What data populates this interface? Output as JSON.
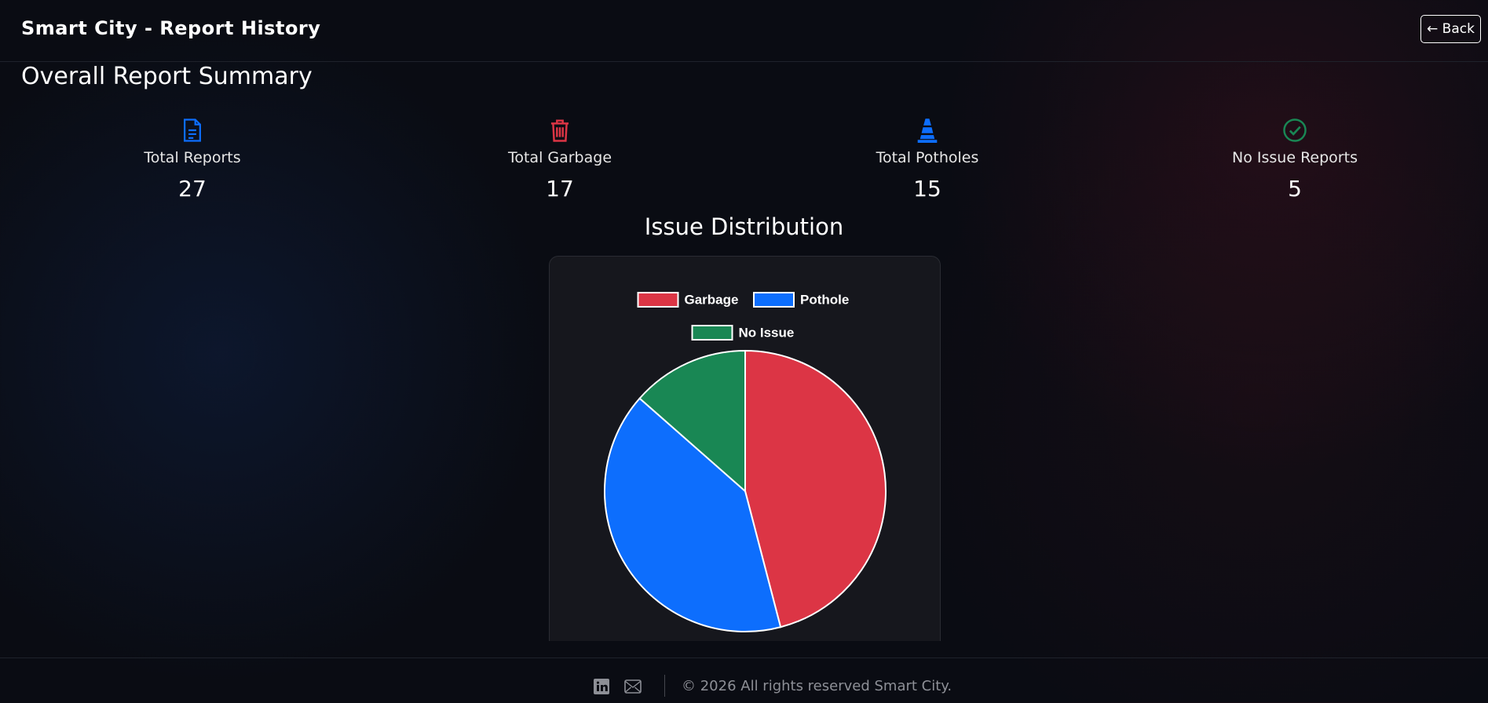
{
  "header": {
    "title": "Smart City - Report History",
    "back": "← Back"
  },
  "summary": {
    "title": "Overall Report Summary",
    "stats": [
      {
        "label": "Total Reports",
        "value": 27
      },
      {
        "label": "Total Garbage",
        "value": 17
      },
      {
        "label": "Total Potholes",
        "value": 15
      },
      {
        "label": "No Issue Reports",
        "value": 5
      }
    ]
  },
  "chart_data": {
    "type": "pie",
    "title": "Issue Distribution",
    "categories": [
      "Garbage",
      "Pothole",
      "No Issue"
    ],
    "values": [
      17,
      15,
      5
    ],
    "colors": [
      "#dc3545",
      "#0d6efd",
      "#198754"
    ]
  },
  "footer": {
    "copyright": "© 2026 All rights reserved Smart City."
  }
}
